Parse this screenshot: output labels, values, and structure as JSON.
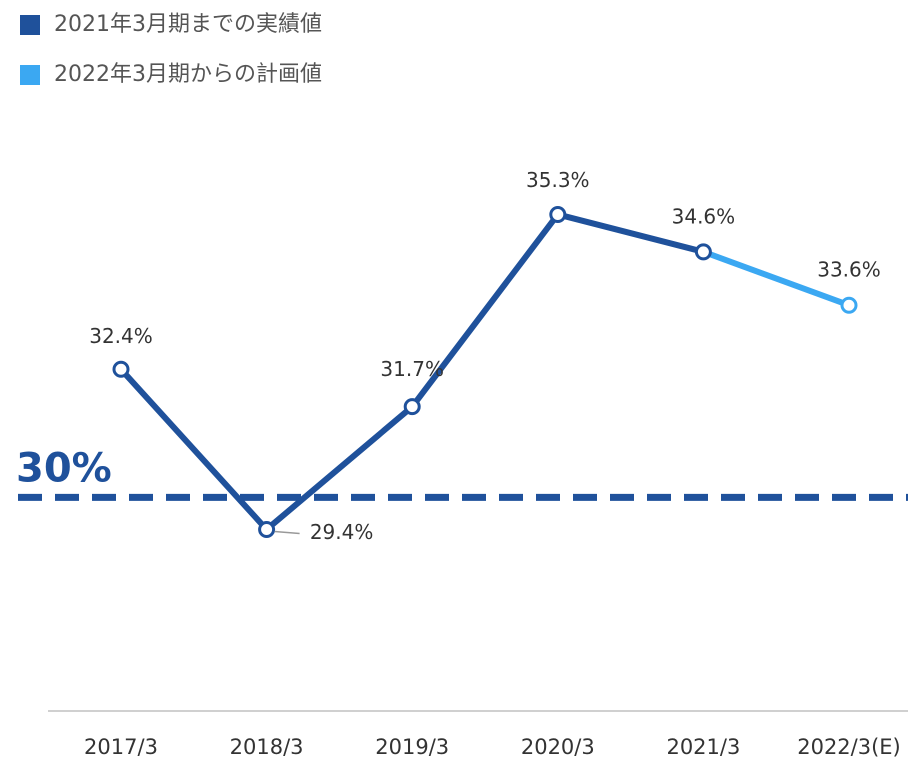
{
  "chart_data": {
    "type": "line",
    "categories": [
      "2017/3",
      "2018/3",
      "2019/3",
      "2020/3",
      "2021/3",
      "2022/3(E)"
    ],
    "series": [
      {
        "name": "2021年3月期までの実績値",
        "color": "#1f519b",
        "values": [
          32.4,
          29.4,
          31.7,
          35.3,
          34.6,
          null
        ],
        "value_labels": [
          "32.4%",
          "29.4%",
          "31.7%",
          "35.3%",
          "34.6%",
          null
        ]
      },
      {
        "name": "2022年3月期からの計画値",
        "color": "#3ba8f2",
        "values": [
          null,
          null,
          null,
          null,
          34.6,
          33.6
        ],
        "value_labels": [
          null,
          null,
          null,
          null,
          null,
          "33.6%"
        ]
      }
    ],
    "ylim": [
      26,
      37.5
    ],
    "reference_line": {
      "value": 30,
      "label": "30%"
    }
  }
}
